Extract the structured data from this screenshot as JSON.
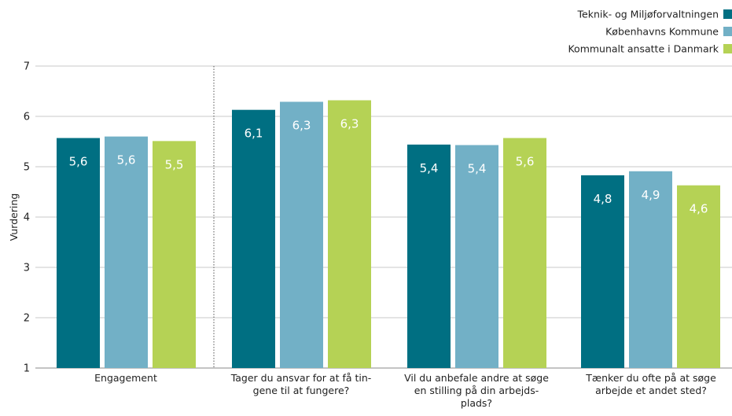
{
  "chart_data": {
    "type": "bar",
    "ylabel": "Vurdering",
    "ylim": [
      1,
      7
    ],
    "yticks": [
      1,
      2,
      3,
      4,
      5,
      6,
      7
    ],
    "grid": true,
    "legend_position": "top-right",
    "categories": [
      [
        "Engagement"
      ],
      [
        "Tager du ansvar for at få tin-",
        "gene til at fungere?"
      ],
      [
        "Vil du anbefale andre at søge",
        "en stilling på din arbejds-",
        "plads?"
      ],
      [
        "Tænker du ofte på at søge",
        "arbejde et andet sted?"
      ]
    ],
    "series": [
      {
        "name": "Teknik- og Miljøforvaltningen",
        "color": "#006f82",
        "values": [
          5.57,
          6.13,
          5.44,
          4.83
        ],
        "labels": [
          "5,6",
          "6,1",
          "5,4",
          "4,8"
        ]
      },
      {
        "name": "Københavns Kommune",
        "color": "#72b0c6",
        "values": [
          5.6,
          6.29,
          5.43,
          4.91
        ],
        "labels": [
          "5,6",
          "6,3",
          "5,4",
          "4,9"
        ]
      },
      {
        "name": "Kommunalt ansatte i Danmark",
        "color": "#b5d255",
        "values": [
          5.51,
          6.32,
          5.57,
          4.63
        ],
        "labels": [
          "5,5",
          "6,3",
          "5,6",
          "4,6"
        ]
      }
    ]
  }
}
